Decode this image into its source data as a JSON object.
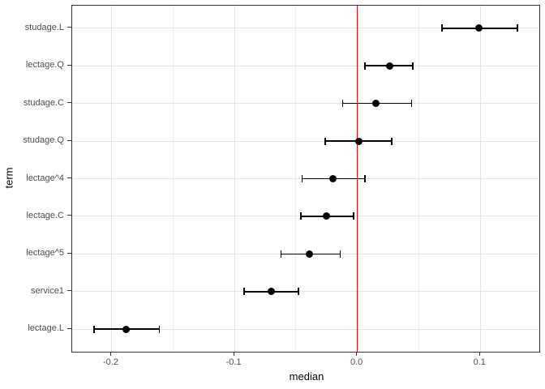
{
  "chart_data": {
    "type": "scatter",
    "subtype": "pointrange-forest-plot",
    "title": "",
    "xlabel": "median",
    "ylabel": "term",
    "x_ticks": [
      -0.2,
      -0.1,
      0.0,
      0.1
    ],
    "x_tick_labels": [
      "-0.2",
      "-0.1",
      "0.0",
      "0.1"
    ],
    "x_minor_ticks": [
      -0.15,
      -0.05,
      0.05
    ],
    "xlim": [
      -0.232,
      0.148
    ],
    "grid": true,
    "legend": false,
    "reference_line": {
      "x": 0.0,
      "color": "#ff0000"
    },
    "points": [
      {
        "term": "studage.L",
        "median": 0.099,
        "lower": 0.069,
        "upper": 0.13
      },
      {
        "term": "lectage.Q",
        "median": 0.026,
        "lower": 0.006,
        "upper": 0.045
      },
      {
        "term": "studage.C",
        "median": 0.015,
        "lower": -0.012,
        "upper": 0.044
      },
      {
        "term": "studage.Q",
        "median": 0.001,
        "lower": -0.026,
        "upper": 0.028
      },
      {
        "term": "lectage^4",
        "median": -0.02,
        "lower": -0.045,
        "upper": 0.006
      },
      {
        "term": "lectage.C",
        "median": -0.025,
        "lower": -0.046,
        "upper": -0.003
      },
      {
        "term": "lectage^5",
        "median": -0.039,
        "lower": -0.062,
        "upper": -0.014
      },
      {
        "term": "service1",
        "median": -0.07,
        "lower": -0.092,
        "upper": -0.048
      },
      {
        "term": "lectage.L",
        "median": -0.188,
        "lower": -0.214,
        "upper": -0.161
      }
    ],
    "colors": {
      "point": "#000000",
      "reference_line": "#ff0000",
      "grid_major": "#e3e3e3",
      "grid_minor": "#f0f0f0",
      "panel_border": "#333333",
      "tick_label": "#4d4d4d",
      "axis_title": "#000000"
    }
  }
}
